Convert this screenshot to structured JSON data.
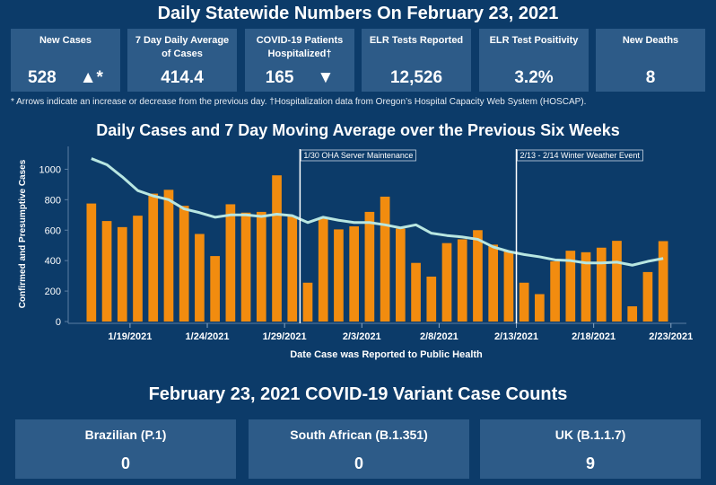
{
  "header": {
    "title": "Daily Statewide Numbers On February 23, 2021"
  },
  "cards": [
    {
      "label": "New Cases",
      "value": "528",
      "indicator": "▲*"
    },
    {
      "label": "7 Day Daily Average of Cases",
      "value": "414.4"
    },
    {
      "label": "COVID-19 Patients Hospitalized†",
      "value": "165",
      "indicator": "▼"
    },
    {
      "label": "ELR Tests Reported",
      "value": "12,526"
    },
    {
      "label": "ELR Test Positivity",
      "value": "3.2%"
    },
    {
      "label": "New Deaths",
      "value": "8"
    }
  ],
  "note": "* Arrows indicate an increase or decrease from the previous day. †Hospitalization data from Oregon’s Hospital Capacity Web System (HOSCAP).",
  "chart_data": {
    "type": "bar",
    "title": "Daily Cases and 7 Day Moving Average over the Previous Six Weeks",
    "y_label": "Confirmed and Presumptive Cases",
    "x_label": "Date Case was Reported to Public Health",
    "x": [
      17,
      18,
      19,
      20,
      21,
      22,
      23,
      24,
      25,
      26,
      27,
      28,
      29,
      30,
      31,
      32,
      33,
      34,
      35,
      36,
      37,
      38,
      39,
      40,
      41,
      42,
      43,
      44,
      45,
      46,
      47,
      48,
      49,
      50,
      51,
      52,
      53,
      54
    ],
    "series": [
      {
        "type": "bar",
        "color": "#f28c0f",
        "values": [
          775,
          660,
          620,
          695,
          840,
          865,
          760,
          575,
          430,
          770,
          715,
          720,
          960,
          690,
          255,
          680,
          605,
          625,
          720,
          820,
          610,
          385,
          295,
          515,
          540,
          600,
          505,
          460,
          255,
          180,
          395,
          465,
          455,
          485,
          530,
          100,
          325,
          528
        ]
      },
      {
        "type": "line",
        "color": "#b8e6e1",
        "values": [
          1070,
          1030,
          950,
          860,
          825,
          800,
          740,
          715,
          685,
          700,
          700,
          690,
          705,
          695,
          650,
          685,
          665,
          650,
          650,
          635,
          615,
          635,
          580,
          565,
          555,
          540,
          490,
          460,
          440,
          425,
          405,
          400,
          385,
          385,
          390,
          370,
          395,
          414.4
        ]
      }
    ],
    "xlim": [
      15,
      55
    ],
    "xticks": [
      {
        "value": 19,
        "label": "1/19/2021"
      },
      {
        "value": 24,
        "label": "1/24/2021"
      },
      {
        "value": 29,
        "label": "1/29/2021"
      },
      {
        "value": 34,
        "label": "2/3/2021"
      },
      {
        "value": 39,
        "label": "2/8/2021"
      },
      {
        "value": 44,
        "label": "2/13/2021"
      },
      {
        "value": 49,
        "label": "2/18/2021"
      },
      {
        "value": 54,
        "label": "2/23/2021"
      }
    ],
    "ylim": [
      0,
      1150
    ],
    "yticks": [
      0,
      200,
      400,
      600,
      800,
      1000
    ],
    "annotations": [
      {
        "text": "1/30 OHA Server Maintenance",
        "x": 30
      },
      {
        "text": "2/13 - 2/14 Winter Weather Event",
        "x": 44
      }
    ]
  },
  "variants": {
    "title": "February 23, 2021 COVID-19 Variant Case Counts",
    "items": [
      {
        "label": "Brazilian (P.1)",
        "value": "0"
      },
      {
        "label": "South African (B.1.351)",
        "value": "0"
      },
      {
        "label": "UK (B.1.1.7)",
        "value": "9"
      }
    ]
  }
}
